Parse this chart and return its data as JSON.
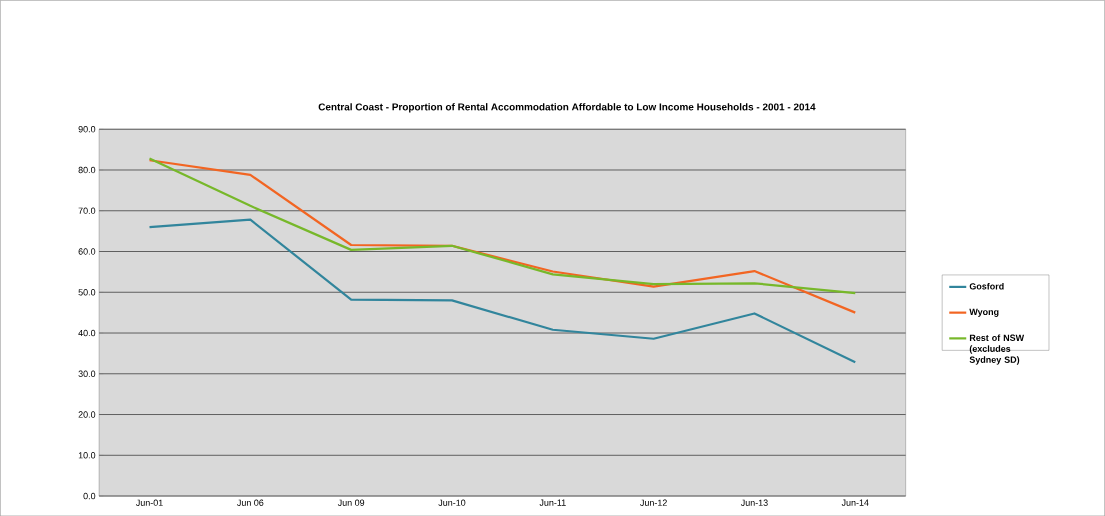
{
  "chart_data": {
    "type": "line",
    "title": "Central Coast - Proportion of Rental Accommodation Affordable to Low Income Households - 2001 - 2014",
    "categories": [
      "Jun-01",
      "Jun 06",
      "Jun 09",
      "Jun-10",
      "Jun-11",
      "Jun-12",
      "Jun-13",
      "Jun-14"
    ],
    "series": [
      {
        "name": "Gosford",
        "color": "#31859c",
        "values": [
          66.0,
          67.8,
          48.2,
          48.0,
          40.8,
          38.6,
          44.8,
          32.8
        ]
      },
      {
        "name": "Wyong",
        "color": "#f26522",
        "values": [
          82.4,
          78.8,
          61.6,
          61.4,
          55.1,
          51.4,
          55.2,
          45.0
        ]
      },
      {
        "name": "Rest of NSW (excludes Sydney SD)",
        "color": "#77b82a",
        "values": [
          82.8,
          71.2,
          60.4,
          61.4,
          54.4,
          52.0,
          52.2,
          49.8
        ]
      }
    ],
    "ylim": [
      0,
      90
    ],
    "yticks": [
      {
        "value": 0,
        "label": "0.0"
      },
      {
        "value": 10,
        "label": "10.0"
      },
      {
        "value": 20,
        "label": "20.0"
      },
      {
        "value": 30,
        "label": "30.0"
      },
      {
        "value": 40,
        "label": "40.0"
      },
      {
        "value": 50,
        "label": "50.0"
      },
      {
        "value": 60,
        "label": "60.0"
      },
      {
        "value": 70,
        "label": "70.0"
      },
      {
        "value": 80,
        "label": "80.0"
      },
      {
        "value": 90,
        "label": "90.0"
      }
    ],
    "grid": "y",
    "legend": "right",
    "marker": "none",
    "line_style": "solid"
  }
}
